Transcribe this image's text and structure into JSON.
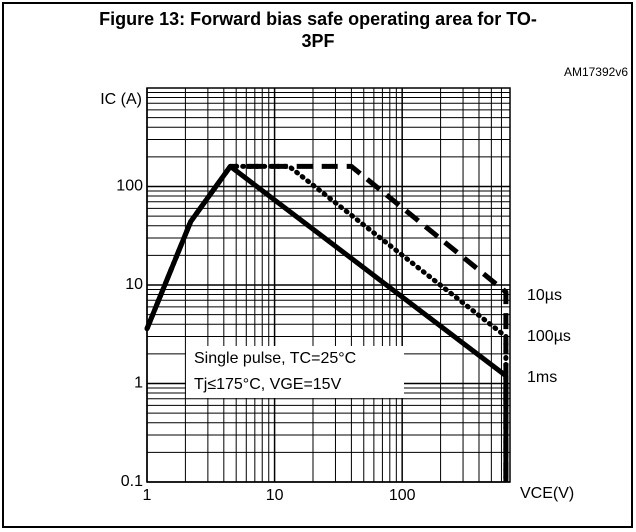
{
  "chart_data": {
    "type": "line",
    "title": "Figure 13: Forward bias safe operating area for TO-3PF",
    "code": "AM17392v6",
    "ylabel": "IC (A)",
    "xlabel": "VCE(V)",
    "annotations": [
      "Single pulse, TC=25°C",
      "Tj≤175°C, VGE=15V"
    ],
    "log_x": true,
    "log_y": true,
    "grid": true,
    "xlim": [
      1,
      700
    ],
    "ylim": [
      0.1,
      1000
    ],
    "xticks": [
      1,
      10,
      100
    ],
    "yticks": [
      0.1,
      1,
      10,
      100
    ],
    "xminor": [
      2,
      3,
      4,
      5,
      6,
      7,
      8,
      9,
      20,
      30,
      40,
      50,
      60,
      70,
      80,
      90,
      200,
      300,
      400,
      500,
      600,
      700
    ],
    "yminor": [
      0.2,
      0.3,
      0.4,
      0.5,
      0.6,
      0.7,
      0.8,
      0.9,
      2,
      3,
      4,
      5,
      6,
      7,
      8,
      9,
      20,
      30,
      40,
      50,
      60,
      70,
      80,
      90,
      200,
      300,
      400,
      500,
      600,
      700,
      800,
      900,
      1000
    ],
    "series": [
      {
        "name": "10µs",
        "color": "#000000",
        "style": "dashed",
        "x": [
          1,
          2.2,
          4.5,
          40,
          650,
          650
        ],
        "values": [
          3.6,
          44,
          160,
          160,
          8.5,
          0.1
        ]
      },
      {
        "name": "100µs",
        "color": "#000000",
        "style": "dotted",
        "x": [
          1,
          2.2,
          4.5,
          13,
          650,
          650
        ],
        "values": [
          3.6,
          44,
          160,
          160,
          3,
          0.1
        ]
      },
      {
        "name": "1ms",
        "color": "#000000",
        "style": "solid",
        "x": [
          1,
          2.2,
          4.5,
          650,
          650
        ],
        "values": [
          3.6,
          44,
          160,
          1.2,
          0.1
        ]
      }
    ]
  }
}
